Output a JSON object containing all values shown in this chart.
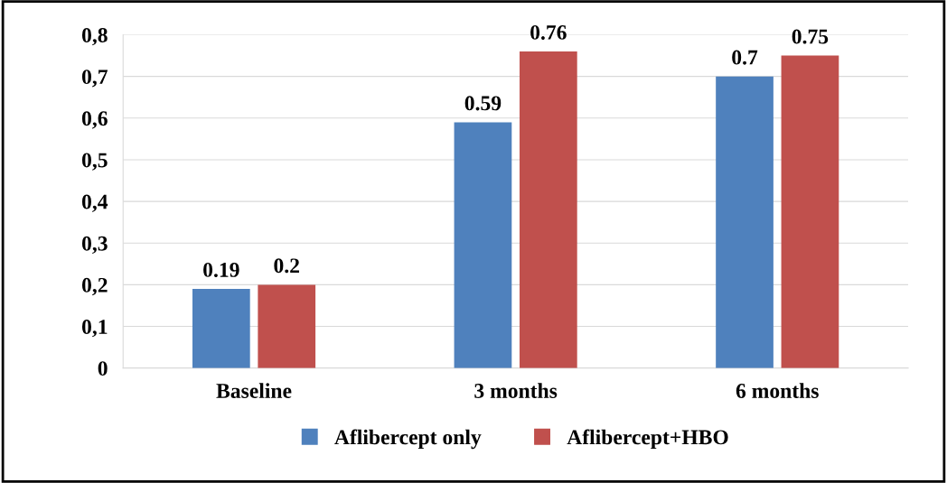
{
  "chart_data": {
    "type": "bar",
    "categories": [
      "Baseline",
      "3 months",
      "6 months"
    ],
    "series": [
      {
        "name": "Aflibercept only",
        "color": "#4f81bd",
        "values": [
          0.19,
          0.59,
          0.7
        ]
      },
      {
        "name": "Aflibercept+HBO",
        "color": "#c0504d",
        "values": [
          0.2,
          0.76,
          0.75
        ]
      }
    ],
    "ylim": [
      0,
      0.8
    ],
    "yticks": [
      0,
      {
        "value": 0.1,
        "label": "0,1"
      },
      {
        "value": 0.2,
        "label": "0,2"
      },
      {
        "value": 0.3,
        "label": "0,3"
      },
      {
        "value": 0.4,
        "label": "0,4"
      },
      {
        "value": 0.5,
        "label": "0,5"
      },
      {
        "value": 0.6,
        "label": "0,6"
      },
      {
        "value": 0.7,
        "label": "0,7"
      },
      {
        "value": 0.8,
        "label": "0,8"
      }
    ],
    "grid": "y",
    "legend": "bottom",
    "data_labels": true
  }
}
